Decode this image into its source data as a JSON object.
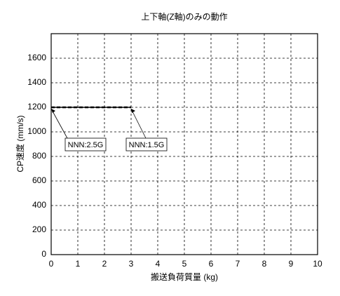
{
  "chart_data": {
    "type": "line",
    "title": "上下軸(Z軸)のみの動作",
    "x_label": "搬送負荷質量 (kg)",
    "y_label": "CP速度 (mm/s)",
    "x": [
      0,
      3
    ],
    "series": [
      {
        "name": "NNN:2.5G",
        "color": "#000000",
        "dashed": false,
        "values": [
          1200,
          1200
        ]
      },
      {
        "name": "NNN:1.5G",
        "color": "#000000",
        "dashed": true,
        "values": [
          1200,
          1200
        ]
      }
    ],
    "xlim": [
      0,
      10
    ],
    "xticks": [
      0,
      1,
      2,
      3,
      4,
      5,
      6,
      7,
      8,
      9,
      10
    ],
    "ylim": [
      0,
      1800
    ],
    "yticks": [
      0,
      200,
      400,
      600,
      800,
      1000,
      1200,
      1400,
      1600
    ],
    "grid": true
  }
}
